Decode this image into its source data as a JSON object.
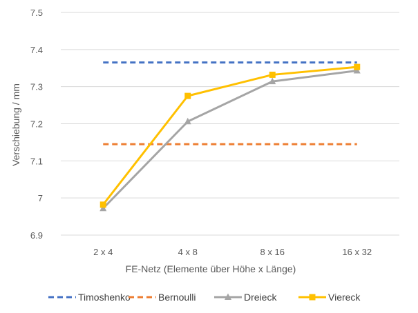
{
  "chart_data": {
    "type": "line",
    "title": "",
    "xlabel": "FE-Netz (Elemente über Höhe x Länge)",
    "ylabel": "Verschiebung / mm",
    "categories": [
      "2 x 4",
      "4 x 8",
      "8 x 16",
      "16 x 32"
    ],
    "ylim": [
      6.9,
      7.5
    ],
    "yticks": [
      "6.9",
      "7",
      "7.1",
      "7.2",
      "7.3",
      "7.4",
      "7.5"
    ],
    "grid": true,
    "legend_position": "bottom",
    "series": [
      {
        "name": "Timoshenko",
        "values": [
          7.365,
          7.365,
          7.365,
          7.365
        ],
        "color": "#4472C4",
        "style": "dashed",
        "marker": "none"
      },
      {
        "name": "Bernoulli",
        "values": [
          7.145,
          7.145,
          7.145,
          7.145
        ],
        "color": "#ED7D31",
        "style": "dashed",
        "marker": "none"
      },
      {
        "name": "Dreieck",
        "values": [
          6.972,
          7.206,
          7.314,
          7.343
        ],
        "color": "#A5A5A5",
        "style": "solid",
        "marker": "triangle"
      },
      {
        "name": "Viereck",
        "values": [
          6.982,
          7.275,
          7.332,
          7.353
        ],
        "color": "#FFC000",
        "style": "solid",
        "marker": "square"
      }
    ]
  }
}
